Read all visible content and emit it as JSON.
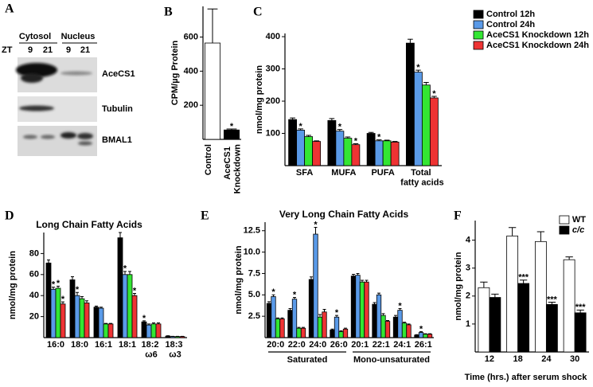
{
  "blot": {
    "label": "A",
    "zt": "ZT",
    "groups": [
      "Cytosol",
      "Nucleus"
    ],
    "lanes": [
      "9",
      "21",
      "9",
      "21"
    ],
    "proteins": [
      "AceCS1",
      "Tubulin",
      "BMAL1"
    ]
  },
  "chart_data": [
    {
      "type": "bar",
      "label": "B",
      "y_label": "CPM/µg Protein",
      "categories": [
        "Control",
        "AceCS1 Knockdown"
      ],
      "rotated_labels": true,
      "values": [
        565,
        55
      ],
      "errors": [
        200,
        6
      ],
      "significance": [
        null,
        "*"
      ],
      "colors": [
        "#ffffff",
        "#000000"
      ],
      "ylim": [
        0,
        780
      ],
      "yticks": [
        200,
        400,
        600
      ]
    },
    {
      "type": "bar",
      "label": "C",
      "y_label": "nmol/mg protein",
      "categories": [
        "SFA",
        "MUFA",
        "PUFA",
        "Total fatty acids"
      ],
      "legend": "top-right",
      "series": [
        {
          "name": "Control 12h",
          "color": "#000000",
          "values": [
            143,
            140,
            100,
            380
          ],
          "errors": [
            5,
            6,
            3,
            12
          ],
          "significance": [
            null,
            null,
            null,
            null
          ]
        },
        {
          "name": "Control 24h",
          "color": "#5a9ae8",
          "values": [
            110,
            107,
            77,
            290
          ],
          "errors": [
            4,
            5,
            3,
            6
          ],
          "significance": [
            "*",
            "*",
            "*",
            "*"
          ]
        },
        {
          "name": "AceCS1 Knockdown 12h",
          "color": "#33e633",
          "values": [
            90,
            85,
            77,
            250
          ],
          "errors": [
            4,
            4,
            2,
            8
          ],
          "significance": [
            null,
            null,
            null,
            null
          ]
        },
        {
          "name": "AceCS1 Knockdown 24h",
          "color": "#ee3333",
          "values": [
            75,
            65,
            73,
            210
          ],
          "errors": [
            2,
            3,
            2,
            5
          ],
          "significance": [
            null,
            "*",
            null,
            "*"
          ]
        }
      ],
      "ylim": [
        0,
        410
      ],
      "yticks": [
        100,
        200,
        300,
        400
      ]
    },
    {
      "type": "bar",
      "label": "D",
      "title": "Long Chain Fatty Acids",
      "y_label": "nmol/mg protein",
      "categories": [
        "16:0",
        "18:0",
        "16:1",
        "18:1",
        "18:2 ω6",
        "18:3 ω3"
      ],
      "series": [
        {
          "color": "#000000",
          "values": [
            71,
            55,
            29,
            95,
            15,
            1.5
          ],
          "errors": [
            3,
            3,
            1,
            5,
            1,
            0.3
          ],
          "significance": [
            null,
            null,
            null,
            null,
            "*",
            null
          ]
        },
        {
          "color": "#5a9ae8",
          "values": [
            46,
            40,
            28,
            60,
            12,
            1
          ],
          "errors": [
            2,
            3,
            1,
            3,
            1,
            0.2
          ],
          "significance": [
            "*",
            "*",
            null,
            "*",
            null,
            null
          ]
        },
        {
          "color": "#33e633",
          "values": [
            47,
            37,
            13,
            60,
            13,
            1
          ],
          "errors": [
            2,
            2,
            0.5,
            3,
            1,
            0.2
          ],
          "significance": [
            "*",
            null,
            null,
            null,
            null,
            null
          ]
        },
        {
          "color": "#ee3333",
          "values": [
            32,
            33,
            13,
            40,
            13,
            1
          ],
          "errors": [
            2,
            2,
            0.5,
            2,
            1,
            0.2
          ],
          "significance": [
            "*",
            null,
            null,
            "*",
            null,
            null
          ]
        }
      ],
      "ylim": [
        0,
        100
      ],
      "yticks": [
        20,
        40,
        60,
        80
      ]
    },
    {
      "type": "bar",
      "label": "E",
      "title": "Very Long Chain Fatty Acids",
      "y_label": "nmol/mg protein",
      "categories": [
        "20:0",
        "22:0",
        "24:0",
        "26:0",
        "20:1",
        "22:1",
        "24:1",
        "26:1"
      ],
      "groups": [
        {
          "label": "Saturated",
          "size": 4
        },
        {
          "label": "Mono-unsaturated",
          "size": 4
        }
      ],
      "series": [
        {
          "color": "#000000",
          "values": [
            4.0,
            3.2,
            6.8,
            0.9,
            7.2,
            3.9,
            2.4,
            0.3
          ],
          "errors": [
            0.2,
            0.2,
            0.3,
            0.1,
            0.2,
            0.2,
            0.2,
            0.05
          ],
          "significance": [
            null,
            null,
            null,
            null,
            null,
            null,
            null,
            null
          ]
        },
        {
          "color": "#5a9ae8",
          "values": [
            4.8,
            4.5,
            12.1,
            2.4,
            7.3,
            5.0,
            3.2,
            0.6
          ],
          "errors": [
            0.2,
            0.2,
            0.8,
            0.2,
            0.2,
            0.2,
            0.2,
            0.1
          ],
          "significance": [
            "*",
            "*",
            "*",
            "*",
            null,
            null,
            "*",
            "*"
          ]
        },
        {
          "color": "#33e633",
          "values": [
            2.2,
            1.1,
            2.4,
            0.7,
            6.5,
            2.6,
            1.7,
            0.4
          ],
          "errors": [
            0.1,
            0.1,
            0.3,
            0.1,
            0.2,
            0.2,
            0.1,
            0.05
          ],
          "significance": [
            null,
            null,
            null,
            null,
            null,
            null,
            null,
            null
          ]
        },
        {
          "color": "#ee3333",
          "values": [
            2.2,
            1.1,
            3.0,
            1.0,
            6.5,
            1.9,
            1.5,
            0.4
          ],
          "errors": [
            0.1,
            0.1,
            0.3,
            0.1,
            0.2,
            0.1,
            0.1,
            0.05
          ],
          "significance": [
            null,
            null,
            null,
            null,
            null,
            null,
            null,
            null
          ]
        }
      ],
      "ylim": [
        0,
        13.5
      ],
      "yticks": [
        2.5,
        {
          "value": 5,
          "label": "5.0"
        },
        7.5,
        {
          "value": 10,
          "label": "10.0"
        },
        12.5
      ]
    },
    {
      "type": "bar",
      "label": "F",
      "y_label": "nmol/mg protein",
      "x_label": "Time (hrs.) after serum shock",
      "categories": [
        "12",
        "18",
        "24",
        "30"
      ],
      "legend": "top-right",
      "series": [
        {
          "name": "WT",
          "color": "#ffffff",
          "values": [
            2.3,
            4.15,
            3.95,
            3.3
          ],
          "errors": [
            0.2,
            0.3,
            0.35,
            0.1
          ],
          "significance": [
            null,
            null,
            null,
            null
          ]
        },
        {
          "name": "c/c",
          "italic": true,
          "color": "#000000",
          "values": [
            1.95,
            2.45,
            1.7,
            1.4
          ],
          "errors": [
            0.12,
            0.12,
            0.08,
            0.1
          ],
          "significance": [
            null,
            "***",
            "***",
            "***"
          ]
        }
      ],
      "ylim": [
        0,
        4.7
      ],
      "yticks": [
        1,
        2,
        3,
        4
      ]
    }
  ]
}
